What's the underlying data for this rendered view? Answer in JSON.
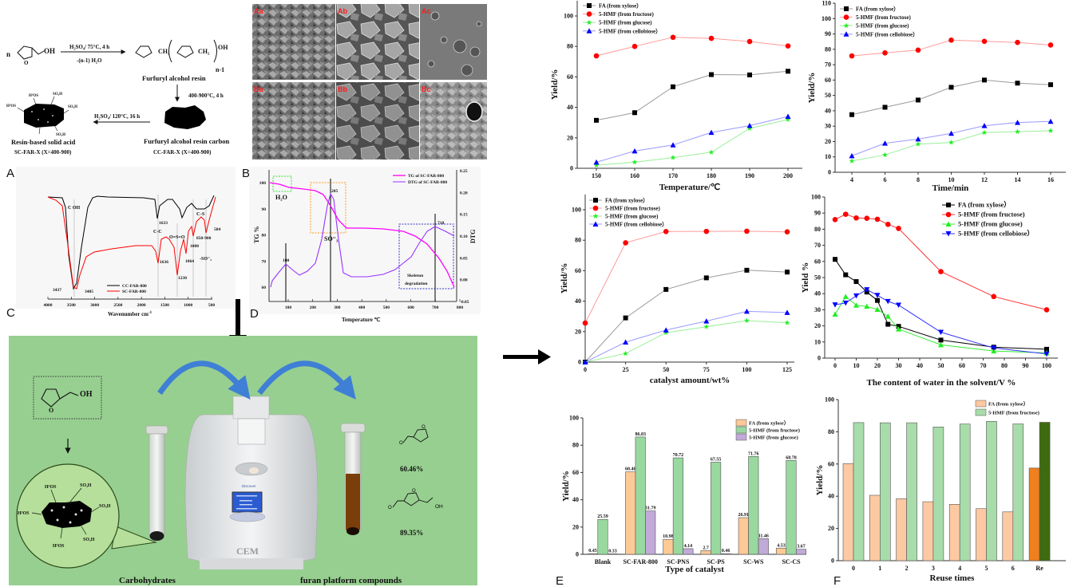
{
  "scheme": {
    "reagent_n": "n",
    "oh": "OH",
    "step1_cond": "H₂SO₄/ 75°C, 4 h",
    "step1_sub": "-(n-1) H₂O",
    "resin_ch2a": "CH₂",
    "resin_ch2b": "CH₂",
    "resin_oh": "OH",
    "resin_n": "n-1",
    "resin_name": "Furfuryl alcohol resin",
    "step2_cond": "400-900°C, 4 h",
    "carbon_name": "Furfuryl alcohol resin carbon",
    "carbon_code": "CC-FAR-X (X=400-900)",
    "step3_cond": "H₂SO₄/ 120°C, 16 h",
    "acid_name": "Resin-based solid acid",
    "acid_code": "SC-FAR-X (X=400-900)",
    "so3h": "SO₃H",
    "ho3s": "H³OS"
  },
  "sem": {
    "labels": [
      "Aa",
      "Ab",
      "Ac",
      "Ba",
      "Bb",
      "Bc"
    ],
    "label_color": "#ff1a1a"
  },
  "panel_labels": {
    "a": "A",
    "b": "B",
    "c": "C",
    "d": "D",
    "e": "E",
    "f": "F"
  },
  "ftir": {
    "xticks": [
      "4000",
      "3500",
      "3000",
      "2500",
      "2000",
      "1500",
      "1000",
      "500"
    ],
    "xlabel": "Wavenumber  cm",
    "xlabel_sup": "-1",
    "legend": [
      "CC-FAR-800",
      "SC-FAR-800"
    ],
    "colors": [
      "#000000",
      "#ff0000"
    ],
    "annotations": {
      "c_oh": "C  OH",
      "p1633": "1633",
      "cc": "C-C",
      "oso": "O=S=O",
      "cs": "C-S",
      "p1008": "1008",
      "p850": "850-900",
      "p584": "584",
      "so3": "-SO⁻₃",
      "p1636": "1636",
      "p1064": "1064",
      "p1230": "1230",
      "p3437": "3437",
      "p3405": "3405"
    }
  },
  "tg": {
    "yticks_left": [
      "60",
      "70",
      "80",
      "90",
      "100"
    ],
    "yticks_right": [
      "-0.05",
      "0.00",
      "0.05",
      "0.10",
      "0.15",
      "0.20",
      "0.25"
    ],
    "xticks": [
      "100",
      "200",
      "300",
      "400",
      "500",
      "600",
      "700",
      "800"
    ],
    "ylabel": "TG %",
    "y2label": "DTG",
    "xlabel": "Temperature ℃",
    "legend": [
      "TG  of SC-FAR-800",
      "DTG  of SC-FAR-800"
    ],
    "colors": [
      "#ff00ff",
      "#9933ff"
    ],
    "annotations": {
      "h2o": "H₂O",
      "so3": "SO⁻₃",
      "p285": "285",
      "p100": "100",
      "p710": "710",
      "skeleton1": "Skeleton",
      "skeleton2": "degradation"
    }
  },
  "graphic": {
    "oh": "OH",
    "device_brand": "CEM",
    "device_model": "Discover",
    "yield_fa": "60.46%",
    "yield_hmf": "89.35%",
    "caption_left": "Carbohydrates",
    "caption_right": "furan platform compounds",
    "background": "#97cf90"
  },
  "chart_data": [
    {
      "type": "line",
      "xlabel": "Temperature/℃",
      "ylabel": "Yield/%",
      "x": [
        150,
        160,
        170,
        180,
        190,
        200
      ],
      "xticks": [
        150,
        160,
        170,
        180,
        190,
        200
      ],
      "yticks": [
        0,
        20,
        40,
        60,
        80,
        100
      ],
      "ylim": [
        0,
        110
      ],
      "legend": "top-left",
      "series": [
        {
          "name": "FA  (from xylose）",
          "values": [
            31.5,
            36.5,
            53.5,
            61.5,
            61.3,
            63.7
          ],
          "color": "#000000",
          "line": "#9a9a9a",
          "marker": "square"
        },
        {
          "name": "5-HMF  (from fructose)",
          "values": [
            73.8,
            80.0,
            86.0,
            85.3,
            83.2,
            80.3
          ],
          "color": "#ff0000",
          "line": "#ff9a9a",
          "marker": "circle"
        },
        {
          "name": "5-HMF  (from glucose)",
          "values": [
            2.0,
            4.0,
            7.0,
            10.5,
            26.2,
            32.0
          ],
          "color": "#22ee22",
          "line": "#99f099",
          "marker": "star"
        },
        {
          "name": "5-HMF  (from cellobiose）",
          "values": [
            4.0,
            11.3,
            15.3,
            23.5,
            28.0,
            34.0
          ],
          "color": "#0000ff",
          "line": "#9a9aff",
          "marker": "triangle"
        }
      ]
    },
    {
      "type": "line",
      "xlabel": "Time/min",
      "ylabel": "Yield/%",
      "x": [
        4,
        6,
        8,
        10,
        12,
        14,
        16
      ],
      "xticks": [
        4,
        6,
        8,
        10,
        12,
        14,
        16
      ],
      "yticks": [
        0,
        10,
        20,
        30,
        40,
        50,
        60,
        70,
        80,
        90,
        100,
        110
      ],
      "ylim": [
        0,
        110
      ],
      "legend": "top-left",
      "series": [
        {
          "name": "FA  (from xylose）",
          "values": [
            37.5,
            42.3,
            47.0,
            55.3,
            60.0,
            58.0,
            57.0
          ],
          "color": "#000000",
          "line": "#9a9a9a",
          "marker": "square"
        },
        {
          "name": "5-HMF  (from fructose)",
          "values": [
            75.7,
            77.7,
            79.5,
            86.0,
            85.2,
            84.5,
            82.8
          ],
          "color": "#ff0000",
          "line": "#ff9a9a",
          "marker": "circle"
        },
        {
          "name": "5-HMF  (from glucose)",
          "values": [
            7.3,
            11.3,
            18.3,
            19.4,
            25.8,
            26.4,
            27.0
          ],
          "color": "#22ee22",
          "line": "#99f099",
          "marker": "star"
        },
        {
          "name": "5-HMF  (from cellobiose）",
          "values": [
            10.7,
            18.9,
            21.6,
            25.3,
            30.3,
            32.4,
            33.1
          ],
          "color": "#0000ff",
          "line": "#9a9aff",
          "marker": "triangle"
        }
      ]
    },
    {
      "type": "line",
      "xlabel": "catalyst amount/wt%",
      "ylabel": "Yield/%",
      "x": [
        0,
        25,
        50,
        75,
        100,
        125
      ],
      "xticks": [
        0,
        25,
        50,
        75,
        100,
        125
      ],
      "yticks": [
        0,
        20,
        40,
        60,
        80,
        100
      ],
      "ylim": [
        0,
        110
      ],
      "legend": "top-left",
      "series": [
        {
          "name": "FA  (from xylose）",
          "values": [
            0,
            29.0,
            47.7,
            55.3,
            60.3,
            59.1
          ],
          "color": "#000000",
          "line": "#9a9a9a",
          "marker": "square"
        },
        {
          "name": "5-HMF  (from fructose)",
          "values": [
            25.6,
            78.3,
            85.7,
            85.8,
            85.9,
            85.5
          ],
          "color": "#ff0000",
          "line": "#ff9a9a",
          "marker": "circle"
        },
        {
          "name": "5-HMF  (from glucose)",
          "values": [
            0,
            5.6,
            19.3,
            23.2,
            27.2,
            25.8
          ],
          "color": "#22ee22",
          "line": "#99f099",
          "marker": "star"
        },
        {
          "name": "5-HMF  (from cellobiose）",
          "values": [
            0,
            13.1,
            21.0,
            26.9,
            33.3,
            32.5
          ],
          "color": "#0000ff",
          "line": "#9a9aff",
          "marker": "triangle"
        }
      ]
    },
    {
      "type": "line",
      "xlabel": "The content of water in the solvent/V %",
      "ylabel": "Yield %",
      "x": [
        0,
        5,
        10,
        15,
        20,
        25,
        30,
        50,
        75,
        100
      ],
      "xticks": [
        0,
        10,
        20,
        30,
        40,
        50,
        60,
        70,
        80,
        90,
        100
      ],
      "yticks": [
        0,
        10,
        20,
        30,
        40,
        50,
        60,
        70,
        80,
        90,
        100
      ],
      "ylim": [
        0,
        100
      ],
      "legend": "top-right",
      "series": [
        {
          "name": "FA  (from xylose）",
          "values": [
            61.3,
            51.7,
            47.5,
            41.0,
            35.8,
            21.0,
            19.7,
            11.2,
            6.8,
            5.5
          ],
          "color": "#000000",
          "line": "#000000",
          "marker": "square"
        },
        {
          "name": "5-HMF  (from fructose)",
          "values": [
            86.0,
            89.3,
            87.0,
            86.8,
            86.2,
            83.0,
            80.5,
            53.7,
            38.2,
            30.0
          ],
          "color": "#ff0000",
          "line": "#ff3333",
          "marker": "circle"
        },
        {
          "name": "5-HMF  (from glucose)",
          "values": [
            27.2,
            38.2,
            32.8,
            32.1,
            30.2,
            25.9,
            18.0,
            8.2,
            4.4,
            3.2
          ],
          "color": "#22ee22",
          "line": "#33ee33",
          "marker": "triangle"
        },
        {
          "name": "5-HMF  (from cellobiose）",
          "values": [
            33.1,
            34.2,
            38.7,
            42.5,
            39.0,
            35.2,
            32.9,
            16.1,
            6.3,
            2.6
          ],
          "color": "#0000ff",
          "line": "#3333ff",
          "marker": "triangle-down"
        }
      ]
    },
    {
      "type": "bar",
      "xlabel": "Type of catalyst",
      "ylabel": "Yield/%",
      "categories": [
        "Blank",
        "SC-FAR-800",
        "SC-PNS",
        "SC-PS",
        "SC-WS",
        "SC-CS"
      ],
      "yticks": [
        0,
        20,
        40,
        60,
        80,
        100
      ],
      "ylim": [
        0,
        100
      ],
      "legend": "top-right",
      "series": [
        {
          "name": "FA  (from xylose）",
          "values": [
            0.45,
            60.46,
            10.98,
            2.7,
            26.91,
            4.53
          ],
          "labels": [
            "0.45",
            "60.46",
            "10.98",
            "2.7",
            "26.91",
            "4.53"
          ],
          "color": "#fdc996"
        },
        {
          "name": "5-HMF  (from fructose)",
          "values": [
            25.59,
            86.03,
            70.72,
            67.55,
            71.76,
            68.78
          ],
          "labels": [
            "25.59",
            "86.03",
            "70.72",
            "67.55",
            "71.76",
            "68.78"
          ],
          "color": "#99d89f"
        },
        {
          "name": "5-HMF  (from glucose)",
          "values": [
            0.33,
            31.79,
            4.14,
            0.46,
            11.46,
            3.67
          ],
          "labels": [
            "0.33",
            "31.79",
            "4.14",
            "0.46",
            "11.46",
            "3.67"
          ],
          "color": "#c1aad8"
        }
      ]
    },
    {
      "type": "bar",
      "xlabel": "Reuse times",
      "ylabel": "Yield/%",
      "categories": [
        "0",
        "1",
        "2",
        "3",
        "4",
        "5",
        "6",
        "Re"
      ],
      "yticks": [
        0,
        20,
        40,
        60,
        80,
        100
      ],
      "ylim": [
        0,
        100
      ],
      "legend": "top-right",
      "series": [
        {
          "name": "FA  (from xylose）",
          "values": [
            60.3,
            40.6,
            38.5,
            36.6,
            35.0,
            32.3,
            30.3,
            57.5
          ],
          "color": "#fdc9a2",
          "highlight_color": "#f07f1e"
        },
        {
          "name": "5-HMF  (from fructose)",
          "values": [
            85.7,
            85.6,
            85.6,
            83.0,
            84.8,
            86.5,
            84.9,
            85.9
          ],
          "color": "#a8dcaa",
          "highlight_color": "#3f6b10"
        }
      ]
    }
  ]
}
